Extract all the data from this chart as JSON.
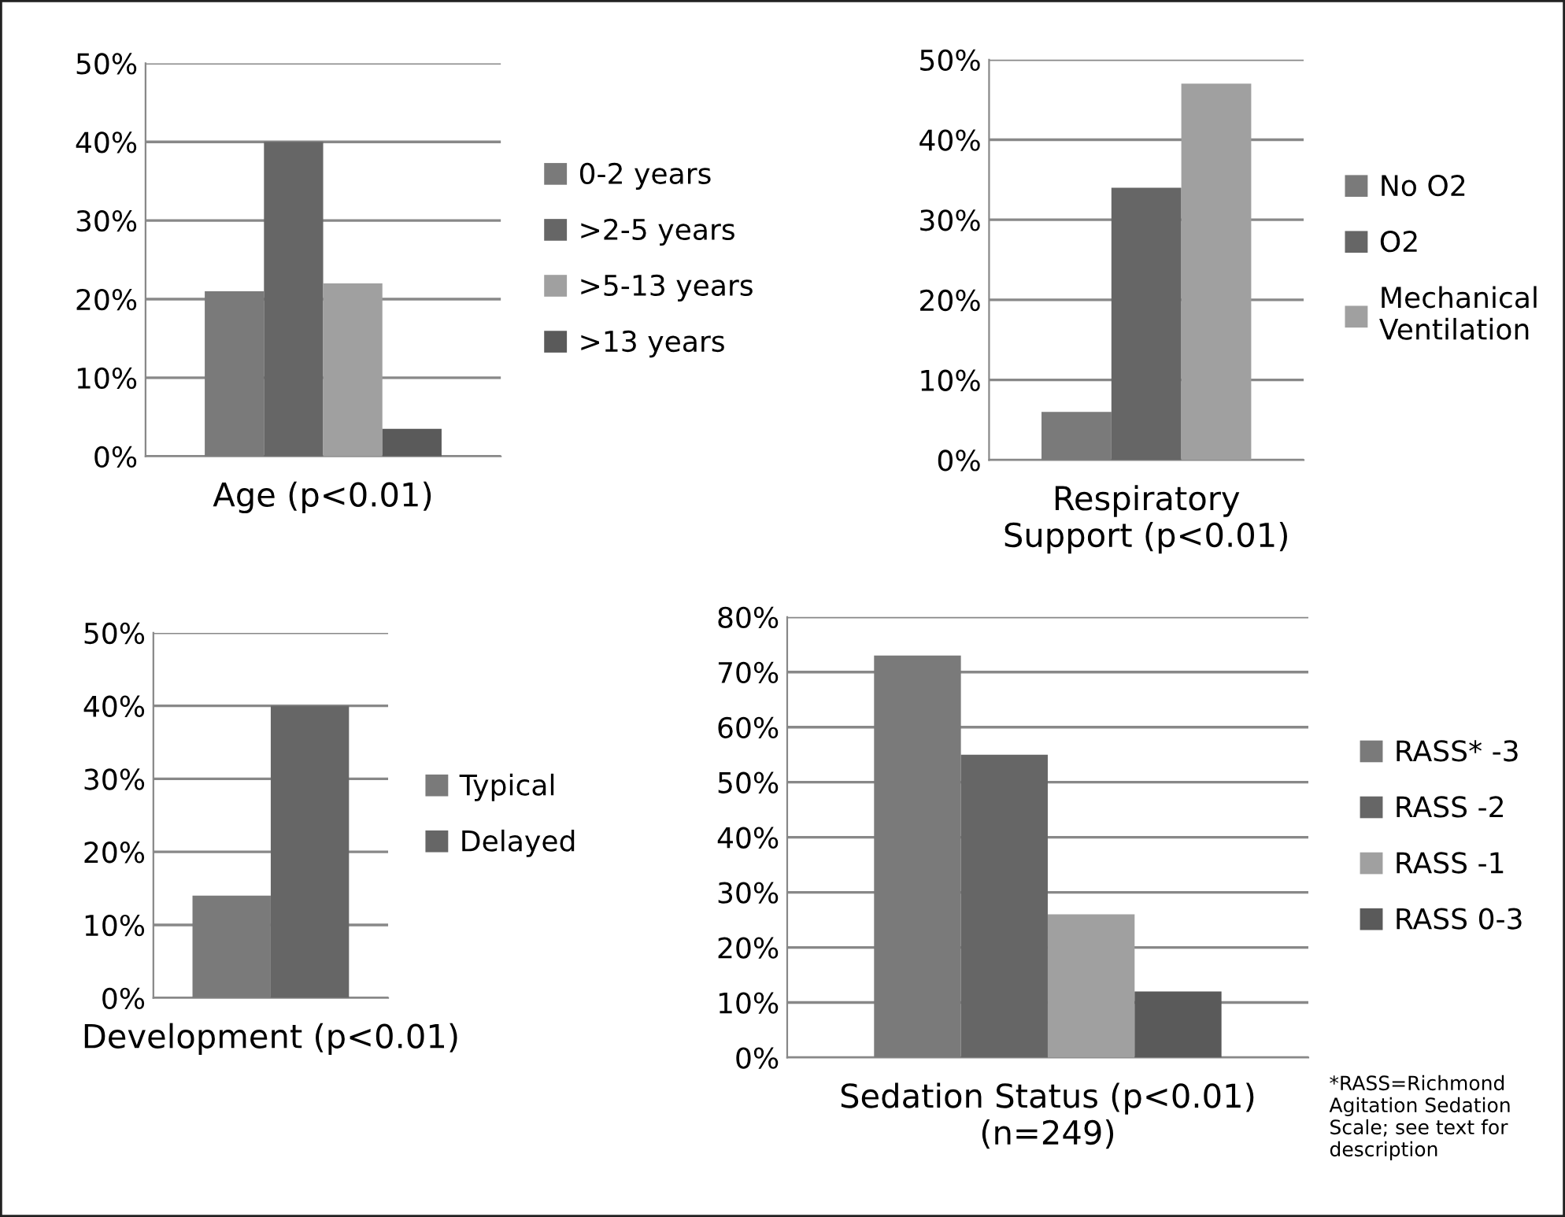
{
  "chart_data": [
    {
      "type": "bar",
      "xlabel": "Age (p<0.01)",
      "categories": [
        null
      ],
      "ylim": [
        0,
        50
      ],
      "yticks": [
        {
          "value": 0,
          "label": "0%"
        },
        {
          "value": 10,
          "label": "10%"
        },
        {
          "value": 20,
          "label": "20%"
        },
        {
          "value": 30,
          "label": "30%"
        },
        {
          "value": 40,
          "label": "40%"
        },
        {
          "value": 50,
          "label": "50%"
        }
      ],
      "grid": "y",
      "legend": "right",
      "series": [
        {
          "name": "0-2 years",
          "color": "#7a7a7a",
          "values": [
            21
          ]
        },
        {
          "name": ">2-5 years",
          "color": "#666666",
          "values": [
            40
          ]
        },
        {
          "name": ">5-13 years",
          "color": "#a0a0a0",
          "values": [
            22
          ]
        },
        {
          "name": ">13 years",
          "color": "#5a5a5a",
          "values": [
            3.5
          ]
        }
      ]
    },
    {
      "type": "bar",
      "xlabel": "Respiratory\nSupport (p<0.01)",
      "categories": [
        null
      ],
      "ylim": [
        0,
        50
      ],
      "yticks": [
        {
          "value": 0,
          "label": "0%"
        },
        {
          "value": 10,
          "label": "10%"
        },
        {
          "value": 20,
          "label": "20%"
        },
        {
          "value": 30,
          "label": "30%"
        },
        {
          "value": 40,
          "label": "40%"
        },
        {
          "value": 50,
          "label": "50%"
        }
      ],
      "grid": "y",
      "legend": "right",
      "series": [
        {
          "name": "No O2",
          "color": "#7a7a7a",
          "values": [
            6
          ]
        },
        {
          "name": "O2",
          "color": "#666666",
          "values": [
            34
          ]
        },
        {
          "name": "Mechanical\nVentilation",
          "color": "#a0a0a0",
          "values": [
            47
          ]
        }
      ]
    },
    {
      "type": "bar",
      "xlabel": "Development (p<0.01)",
      "categories": [
        null
      ],
      "ylim": [
        0,
        50
      ],
      "yticks": [
        {
          "value": 0,
          "label": "0%"
        },
        {
          "value": 10,
          "label": "10%"
        },
        {
          "value": 20,
          "label": "20%"
        },
        {
          "value": 30,
          "label": "30%"
        },
        {
          "value": 40,
          "label": "40%"
        },
        {
          "value": 50,
          "label": "50%"
        }
      ],
      "grid": "y",
      "legend": "right",
      "series": [
        {
          "name": "Typical",
          "color": "#7a7a7a",
          "values": [
            14
          ]
        },
        {
          "name": "Delayed",
          "color": "#666666",
          "values": [
            40
          ]
        }
      ]
    },
    {
      "type": "bar",
      "xlabel": "Sedation Status (p<0.01)\n(n=249)",
      "categories": [
        null
      ],
      "ylim": [
        0,
        80
      ],
      "yticks": [
        {
          "value": 0,
          "label": "0%"
        },
        {
          "value": 10,
          "label": "10%"
        },
        {
          "value": 20,
          "label": "20%"
        },
        {
          "value": 30,
          "label": "30%"
        },
        {
          "value": 40,
          "label": "40%"
        },
        {
          "value": 50,
          "label": "50%"
        },
        {
          "value": 60,
          "label": "60%"
        },
        {
          "value": 70,
          "label": "70%"
        },
        {
          "value": 80,
          "label": "80%"
        }
      ],
      "grid": "y",
      "legend": "right",
      "annotations": [
        "*RASS=Richmond\nAgitation Sedation\nScale; see text for\ndescription"
      ],
      "series": [
        {
          "name": "RASS* -3",
          "color": "#7a7a7a",
          "values": [
            73
          ]
        },
        {
          "name": "RASS -2",
          "color": "#666666",
          "values": [
            55
          ]
        },
        {
          "name": "RASS -1",
          "color": "#a0a0a0",
          "values": [
            26
          ]
        },
        {
          "name": "RASS 0-3",
          "color": "#5a5a5a",
          "values": [
            12
          ]
        }
      ]
    }
  ]
}
